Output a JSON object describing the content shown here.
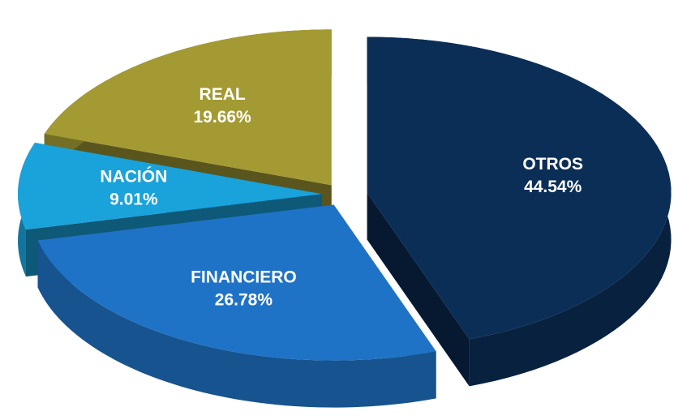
{
  "chart_data": {
    "type": "pie",
    "categories": [
      "OTROS",
      "FINANCIERO",
      "NACIÓN",
      "REAL"
    ],
    "values": [
      44.54,
      26.78,
      9.01,
      19.66
    ],
    "value_labels": [
      "44.54%",
      "26.78%",
      "9.01%",
      "19.66%"
    ],
    "colors": [
      "#0b2e57",
      "#1f73c6",
      "#1aa2db",
      "#a39a33"
    ]
  }
}
